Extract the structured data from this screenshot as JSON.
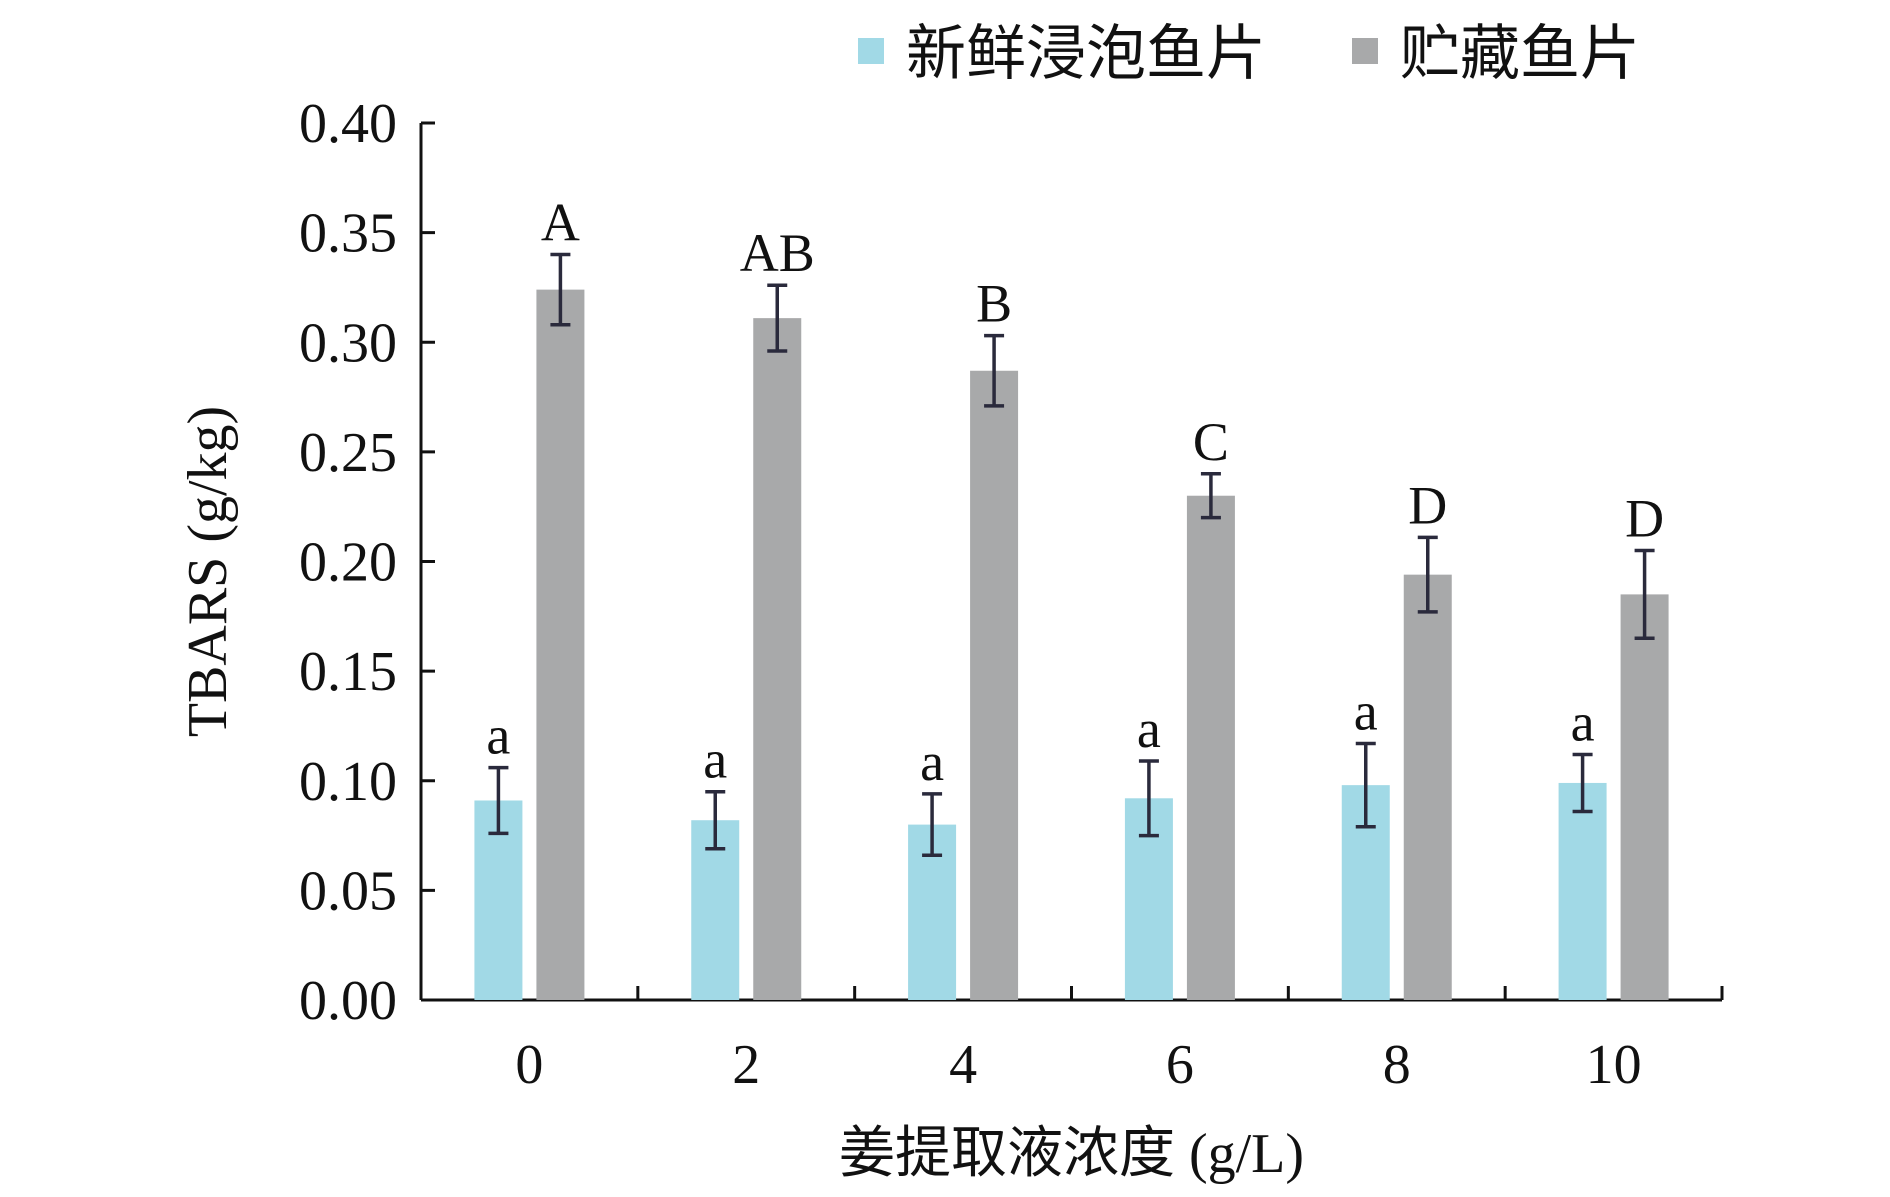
{
  "chart_data": {
    "type": "bar",
    "title": "",
    "xlabel": "姜提取液浓度 (g/L)",
    "ylabel": "TBARS (g/kg)",
    "categories": [
      "0",
      "2",
      "4",
      "6",
      "8",
      "10"
    ],
    "ylim": [
      0,
      0.4
    ],
    "yticks": [
      "0.00",
      "0.05",
      "0.10",
      "0.15",
      "0.20",
      "0.25",
      "0.30",
      "0.35",
      "0.40"
    ],
    "legend_position": "top",
    "grid": false,
    "series": [
      {
        "name": "新鲜浸泡鱼片",
        "color": "#a1d9e6",
        "values": [
          0.091,
          0.082,
          0.08,
          0.092,
          0.098,
          0.099
        ],
        "errors": [
          0.015,
          0.013,
          0.014,
          0.017,
          0.019,
          0.013
        ],
        "labels": [
          "a",
          "a",
          "a",
          "a",
          "a",
          "a"
        ]
      },
      {
        "name": "贮藏鱼片",
        "color": "#a8a9aa",
        "values": [
          0.324,
          0.311,
          0.287,
          0.23,
          0.194,
          0.185
        ],
        "errors": [
          0.016,
          0.015,
          0.016,
          0.01,
          0.017,
          0.02
        ],
        "labels": [
          "A",
          "AB",
          "B",
          "C",
          "D",
          "D"
        ]
      }
    ]
  }
}
